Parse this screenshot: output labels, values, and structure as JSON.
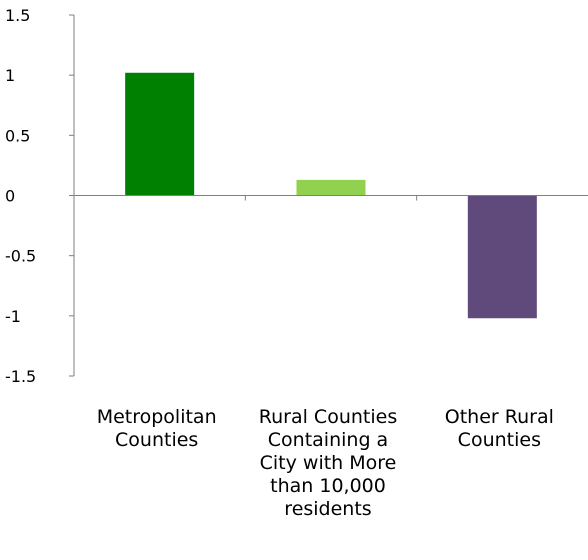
{
  "chart_data": {
    "type": "bar",
    "categories": [
      [
        "Metropolitan",
        "Counties"
      ],
      [
        "Rural Counties",
        "Containing a",
        "City with More",
        "than 10,000",
        "residents"
      ],
      [
        "Other Rural",
        "Counties"
      ]
    ],
    "values": [
      1.02,
      0.13,
      -1.02
    ],
    "colors": [
      "#008000",
      "#92d050",
      "#604a7b"
    ],
    "ylim": [
      -1.5,
      1.5
    ],
    "yticks": [
      1.5,
      1,
      0.5,
      0,
      -0.5,
      -1,
      -1.5
    ],
    "ytick_labels": [
      "1.5",
      "1",
      "0.5",
      "0",
      "-0.5",
      "-1",
      "-1.5"
    ],
    "title": "",
    "xlabel": "",
    "ylabel": "",
    "grid": false,
    "legend": "none"
  }
}
